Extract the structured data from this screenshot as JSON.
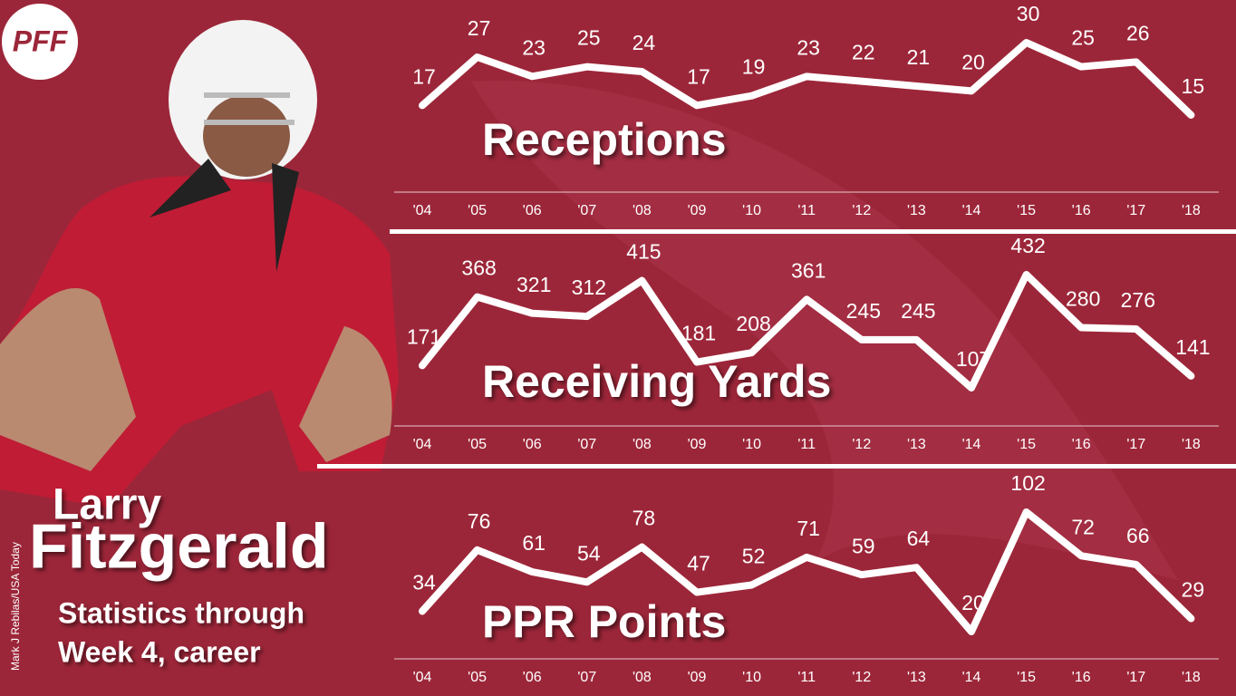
{
  "logo": "PFF",
  "player": {
    "first": "Larry",
    "last": "Fitzgerald"
  },
  "subtitle": [
    "Statistics through",
    "Week 4, career"
  ],
  "credit": "Mark J Rebilas/USA Today",
  "chart_data": [
    {
      "type": "line",
      "title": "Receptions",
      "color": "#ffffff",
      "categories": [
        "'04",
        "'05",
        "'06",
        "'07",
        "'08",
        "'09",
        "'10",
        "'11",
        "'12",
        "'13",
        "'14",
        "'15",
        "'16",
        "'17",
        "'18"
      ],
      "values": [
        17,
        27,
        23,
        25,
        24,
        17,
        19,
        23,
        22,
        21,
        20,
        30,
        25,
        26,
        15
      ]
    },
    {
      "type": "line",
      "title": "Receiving Yards",
      "color": "#ffffff",
      "categories": [
        "'04",
        "'05",
        "'06",
        "'07",
        "'08",
        "'09",
        "'10",
        "'11",
        "'12",
        "'13",
        "'14",
        "'15",
        "'16",
        "'17",
        "'18"
      ],
      "values": [
        171,
        368,
        321,
        312,
        415,
        181,
        208,
        361,
        245,
        245,
        107,
        432,
        280,
        276,
        141
      ]
    },
    {
      "type": "line",
      "title": "PPR Points",
      "color": "#ffffff",
      "categories": [
        "'04",
        "'05",
        "'06",
        "'07",
        "'08",
        "'09",
        "'10",
        "'11",
        "'12",
        "'13",
        "'14",
        "'15",
        "'16",
        "'17",
        "'18"
      ],
      "values": [
        34,
        76,
        61,
        54,
        78,
        47,
        52,
        71,
        59,
        64,
        20,
        102,
        72,
        66,
        29
      ]
    }
  ]
}
